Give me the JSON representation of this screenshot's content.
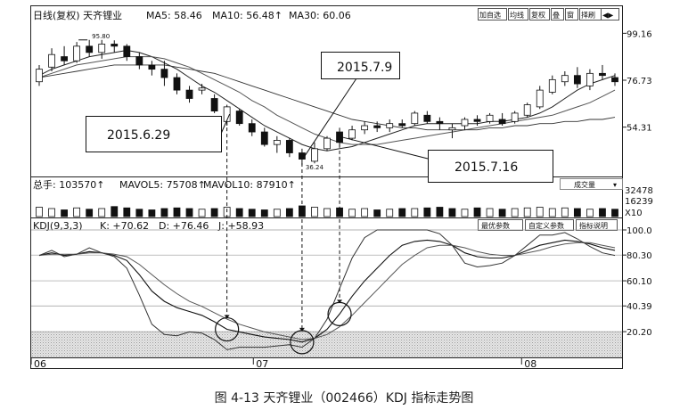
{
  "main_panel": {
    "header": {
      "title": "日线(复权) 天齐锂业",
      "ma5": "MA5: 58.46",
      "ma10": "MA10: 56.48↑",
      "ma30": "MA30: 60.06"
    },
    "buttons": [
      "加自选",
      "均线",
      "复权",
      "叠",
      "窗",
      "择刷"
    ],
    "price_ticks": [
      {
        "value": 99.16,
        "label": "99.16"
      },
      {
        "value": 76.73,
        "label": "76.73"
      },
      {
        "value": 54.31,
        "label": "54.31"
      }
    ],
    "high_marker": "95.80",
    "low_marker": "36.24"
  },
  "volume_panel": {
    "header": {
      "total": "总手: 103570↑",
      "mavol5": "MAVOL5: 75708↑",
      "mavol10": "MAVOL10: 87910↑"
    },
    "button": "成交量",
    "ticks": [
      "32478",
      "16239",
      "X10"
    ]
  },
  "kdj_panel": {
    "header": {
      "name": "KDJ(9,3,3)",
      "k": "K: +70.62",
      "d": "D: +76.46",
      "j": "J: +58.93"
    },
    "buttons": [
      "最优参数",
      "自定义参数",
      "指标说明"
    ],
    "ticks": [
      {
        "value": 100.0,
        "label": "100.0"
      },
      {
        "value": 80.3,
        "label": "80.30"
      },
      {
        "value": 60.1,
        "label": "60.10"
      },
      {
        "value": 40.39,
        "label": "40.39"
      },
      {
        "value": 20.2,
        "label": "20.20"
      }
    ]
  },
  "x_axis_labels": [
    {
      "pos": 0.0,
      "label": "06"
    },
    {
      "pos": 0.376,
      "label": "07"
    },
    {
      "pos": 0.83,
      "label": "08"
    }
  ],
  "annotations": [
    {
      "label": "2015.6.29",
      "index": 15
    },
    {
      "label": "2015.7.9",
      "index": 21
    },
    {
      "label": "2015.7.16",
      "index": 24
    }
  ],
  "chart_data": {
    "type": "candlestick",
    "x_axis_range": [
      "2015-06",
      "2015-08"
    ],
    "ohlc": [
      [
        76,
        84,
        74,
        82
      ],
      [
        83,
        92,
        81,
        89
      ],
      [
        88,
        93,
        84,
        86
      ],
      [
        86,
        95,
        85,
        93
      ],
      [
        93,
        96,
        88,
        90
      ],
      [
        90,
        96,
        87,
        94
      ],
      [
        94,
        95.8,
        90,
        93
      ],
      [
        93,
        94,
        86,
        88
      ],
      [
        88,
        90,
        82,
        84
      ],
      [
        84,
        86,
        79,
        82
      ],
      [
        82,
        86,
        74,
        78
      ],
      [
        78,
        80,
        70,
        72
      ],
      [
        72,
        74,
        66,
        68
      ],
      [
        72,
        75,
        70,
        73
      ],
      [
        68,
        70,
        61,
        62
      ],
      [
        57,
        65,
        55,
        64
      ],
      [
        62,
        63,
        55,
        56
      ],
      [
        56,
        58,
        50,
        52
      ],
      [
        52,
        54,
        45,
        46
      ],
      [
        46,
        50,
        42,
        48
      ],
      [
        48,
        49,
        40,
        42
      ],
      [
        42,
        44,
        36.24,
        39
      ],
      [
        38,
        47,
        37,
        44
      ],
      [
        44,
        50,
        43,
        49
      ],
      [
        52,
        54,
        45,
        47
      ],
      [
        49,
        55,
        48,
        53
      ],
      [
        53,
        57,
        51,
        55
      ],
      [
        55,
        57,
        52,
        54
      ],
      [
        54,
        58,
        52,
        56
      ],
      [
        56,
        58,
        54,
        55
      ],
      [
        56,
        62,
        55,
        61
      ],
      [
        60,
        62,
        56,
        57
      ],
      [
        57,
        59,
        53,
        56
      ],
      [
        53,
        56,
        49,
        54
      ],
      [
        55,
        59,
        53,
        58
      ],
      [
        58,
        60,
        55,
        57
      ],
      [
        57,
        61,
        56,
        60
      ],
      [
        58,
        61,
        55,
        56
      ],
      [
        57,
        62,
        56,
        61
      ],
      [
        60,
        66,
        59,
        65
      ],
      [
        64,
        74,
        63,
        72
      ],
      [
        71,
        79,
        70,
        77
      ],
      [
        76,
        81,
        74,
        79
      ],
      [
        79,
        83,
        73,
        75
      ],
      [
        74,
        82,
        72,
        80
      ],
      [
        80,
        84,
        77,
        79
      ],
      [
        78,
        80,
        74,
        76
      ]
    ],
    "ma": [
      {
        "name": "MA5",
        "values": [
          79,
          82,
          84,
          86,
          88,
          89,
          90,
          91,
          90,
          88,
          85,
          82,
          78,
          74,
          71,
          67,
          63,
          59,
          55,
          52,
          49,
          46,
          44,
          43,
          44,
          45,
          47,
          49,
          51,
          53,
          55,
          56,
          56,
          56,
          56,
          56,
          57,
          57,
          58,
          59,
          61,
          64,
          68,
          72,
          75,
          77,
          79
        ]
      },
      {
        "name": "MA10",
        "values": [
          78,
          80,
          82,
          84,
          85,
          86,
          87,
          88,
          88,
          88,
          87,
          85,
          83,
          80,
          77,
          74,
          71,
          67,
          64,
          60,
          57,
          54,
          51,
          49,
          47,
          46,
          46,
          46,
          47,
          48,
          49,
          50,
          51,
          52,
          53,
          54,
          55,
          56,
          57,
          58,
          59,
          60,
          62,
          64,
          66,
          69,
          72
        ]
      },
      {
        "name": "MA30",
        "values": [
          78,
          79,
          80,
          81,
          82,
          83,
          84,
          84,
          84,
          84,
          84,
          83,
          82,
          81,
          80,
          78,
          76,
          74,
          72,
          70,
          68,
          66,
          64,
          62,
          60,
          58,
          57,
          56,
          55,
          54,
          54,
          53,
          53,
          53,
          53,
          53,
          54,
          54,
          55,
          55,
          56,
          56,
          57,
          57,
          58,
          58,
          59
        ]
      }
    ],
    "volume": [
      {
        "v": 14,
        "up": true
      },
      {
        "v": 12,
        "up": true
      },
      {
        "v": 10,
        "up": false
      },
      {
        "v": 13,
        "up": true
      },
      {
        "v": 11,
        "up": false
      },
      {
        "v": 12,
        "up": true
      },
      {
        "v": 15,
        "up": false
      },
      {
        "v": 13,
        "up": false
      },
      {
        "v": 11,
        "up": false
      },
      {
        "v": 10,
        "up": false
      },
      {
        "v": 12,
        "up": false
      },
      {
        "v": 13,
        "up": false
      },
      {
        "v": 12,
        "up": false
      },
      {
        "v": 11,
        "up": true
      },
      {
        "v": 12,
        "up": false
      },
      {
        "v": 14,
        "up": true
      },
      {
        "v": 12,
        "up": false
      },
      {
        "v": 11,
        "up": false
      },
      {
        "v": 10,
        "up": false
      },
      {
        "v": 11,
        "up": true
      },
      {
        "v": 12,
        "up": false
      },
      {
        "v": 16,
        "up": false
      },
      {
        "v": 14,
        "up": true
      },
      {
        "v": 12,
        "up": true
      },
      {
        "v": 13,
        "up": false
      },
      {
        "v": 11,
        "up": true
      },
      {
        "v": 12,
        "up": true
      },
      {
        "v": 10,
        "up": false
      },
      {
        "v": 11,
        "up": true
      },
      {
        "v": 12,
        "up": false
      },
      {
        "v": 12,
        "up": true
      },
      {
        "v": 13,
        "up": false
      },
      {
        "v": 14,
        "up": false
      },
      {
        "v": 12,
        "up": false
      },
      {
        "v": 11,
        "up": true
      },
      {
        "v": 13,
        "up": false
      },
      {
        "v": 12,
        "up": true
      },
      {
        "v": 11,
        "up": false
      },
      {
        "v": 12,
        "up": true
      },
      {
        "v": 13,
        "up": true
      },
      {
        "v": 14,
        "up": true
      },
      {
        "v": 12,
        "up": true
      },
      {
        "v": 13,
        "up": true
      },
      {
        "v": 12,
        "up": false
      },
      {
        "v": 11,
        "up": true
      },
      {
        "v": 12,
        "up": false
      },
      {
        "v": 11,
        "up": false
      }
    ],
    "kdj": {
      "K": [
        80,
        82,
        80,
        81,
        83,
        82,
        80,
        76,
        65,
        52,
        44,
        39,
        36,
        33,
        28,
        22,
        20,
        18,
        16,
        15,
        14,
        12,
        15,
        22,
        34,
        48,
        60,
        70,
        80,
        88,
        91,
        92,
        91,
        88,
        82,
        79,
        78,
        78,
        80,
        84,
        88,
        90,
        92,
        91,
        89,
        86,
        84
      ],
      "D": [
        80,
        81,
        81,
        81,
        82,
        82,
        81,
        79,
        73,
        65,
        57,
        50,
        44,
        40,
        35,
        30,
        26,
        23,
        20,
        18,
        16,
        14,
        15,
        18,
        24,
        33,
        43,
        53,
        63,
        73,
        80,
        86,
        88,
        88,
        86,
        83,
        81,
        80,
        80,
        82,
        84,
        87,
        89,
        90,
        90,
        88,
        86
      ],
      "J": [
        80,
        84,
        79,
        81,
        86,
        82,
        79,
        70,
        49,
        26,
        18,
        17,
        20,
        19,
        14,
        6,
        8,
        8,
        8,
        9,
        10,
        8,
        15,
        30,
        54,
        78,
        94,
        100,
        100,
        100,
        100,
        100,
        97,
        88,
        74,
        71,
        72,
        74,
        80,
        88,
        96,
        96,
        98,
        93,
        87,
        82,
        80
      ],
      "range": [
        0,
        100
      ],
      "oversold_zone": [
        0,
        20.2
      ]
    }
  },
  "caption": "图 4-13   天齐锂业（002466）KDJ 指标走势图"
}
